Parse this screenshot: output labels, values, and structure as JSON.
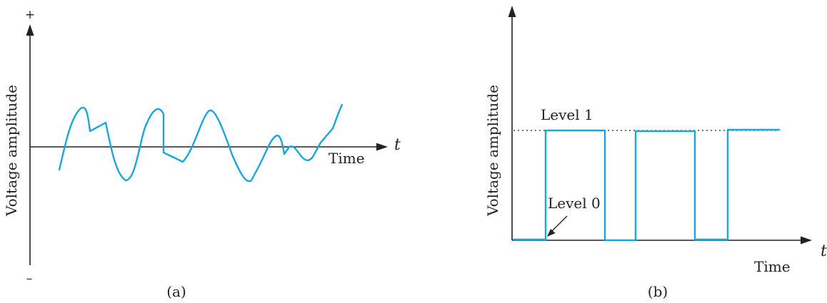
{
  "panel_a": {
    "y_label": "Voltage amplitude",
    "plus_sign": "+",
    "minus_sign": "–",
    "x_axis_symbol": "t",
    "time_label": "Time",
    "caption": "(a)"
  },
  "panel_b": {
    "y_label": "Voltage amplitude",
    "x_axis_symbol": "t",
    "time_label": "Time",
    "level1_label": "Level 1",
    "level0_label": "Level 0",
    "caption": "(b)"
  },
  "colors": {
    "signal": "#1aa6dc",
    "axis": "#222222"
  }
}
